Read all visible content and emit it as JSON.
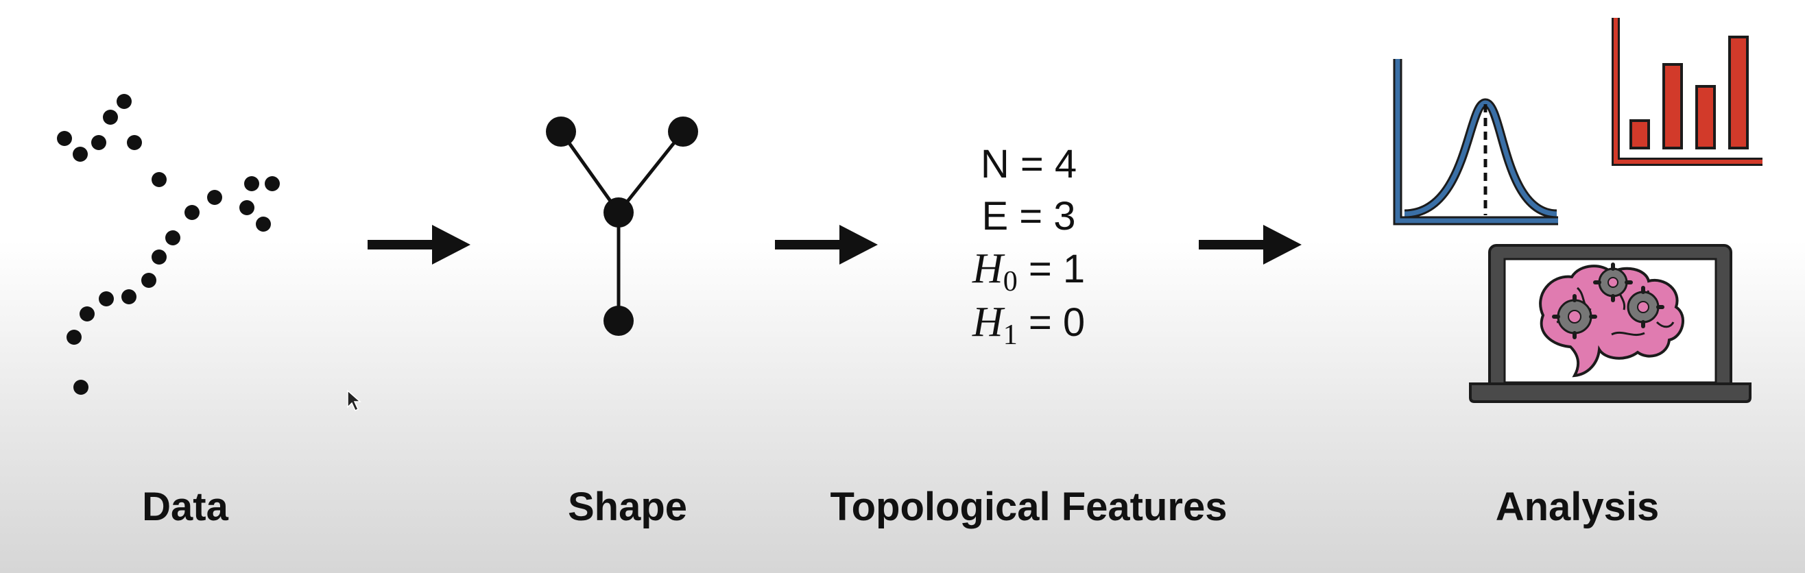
{
  "stages": {
    "data": "Data",
    "shape": "Shape",
    "features": "Topological Features",
    "analysis": "Analysis"
  },
  "features": [
    {
      "symbol": "N",
      "subscript": "",
      "value": "4"
    },
    {
      "symbol": "E",
      "subscript": "",
      "value": "3"
    },
    {
      "symbol": "H",
      "subscript": "0",
      "value": "1"
    },
    {
      "symbol": "H",
      "subscript": "1",
      "value": "0"
    }
  ],
  "icons": {
    "cursor": "mouse-pointer-icon",
    "distribution": "bell-curve-chart-icon",
    "bars": "bar-chart-icon",
    "laptop": "laptop-brain-icon"
  },
  "colors": {
    "ink": "#111111",
    "curve_chart": "#3a6fa6",
    "bar_chart": "#d23a2a",
    "brain": "#e07bb0",
    "laptop": "#4a4a4a"
  }
}
